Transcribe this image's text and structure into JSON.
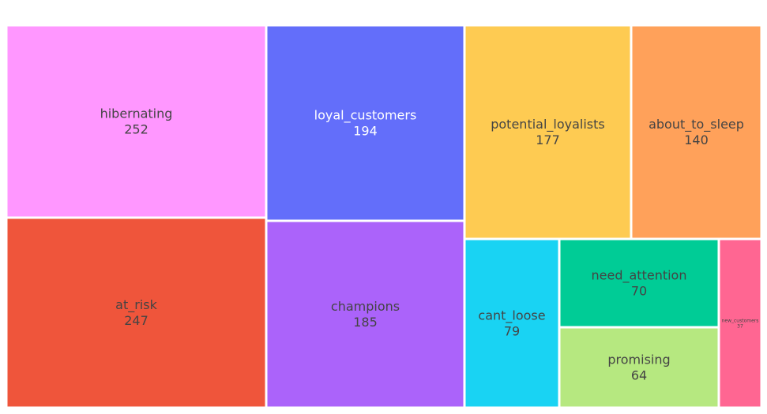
{
  "chart_data": {
    "type": "treemap",
    "title": "",
    "items": [
      {
        "label": "hibernating",
        "value": 252,
        "color": "#FF97FF",
        "text_color": "#444444"
      },
      {
        "label": "at_risk",
        "value": 247,
        "color": "#EF553B",
        "text_color": "#444444"
      },
      {
        "label": "loyal_customers",
        "value": 194,
        "color": "#636EFA",
        "text_color": "#ffffff"
      },
      {
        "label": "champions",
        "value": 185,
        "color": "#AB63FA",
        "text_color": "#444444"
      },
      {
        "label": "potential_loyalists",
        "value": 177,
        "color": "#FECB52",
        "text_color": "#444444"
      },
      {
        "label": "about_to_sleep",
        "value": 140,
        "color": "#FFA15A",
        "text_color": "#444444"
      },
      {
        "label": "cant_loose",
        "value": 79,
        "color": "#19D3F3",
        "text_color": "#444444"
      },
      {
        "label": "need_attention",
        "value": 70,
        "color": "#00CC96",
        "text_color": "#444444"
      },
      {
        "label": "promising",
        "value": 64,
        "color": "#B6E880",
        "text_color": "#444444"
      },
      {
        "label": "new_customers",
        "value": 37,
        "color": "#FF6692",
        "text_color": "#444444"
      }
    ]
  }
}
